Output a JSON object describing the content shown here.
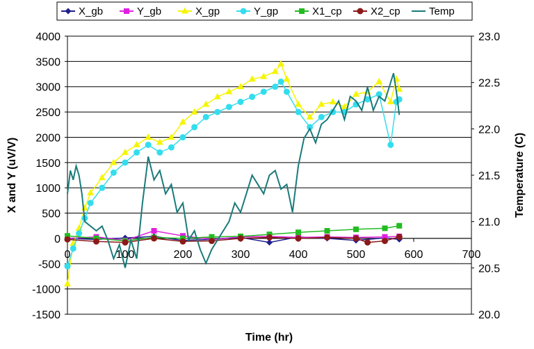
{
  "chart_data": {
    "type": "scatter",
    "xlabel": "Time (hr)",
    "ylabel": "X and Y (uV/V)",
    "y2label": "Temperature (C)",
    "xlim": [
      0,
      700
    ],
    "ylim": [
      -1500,
      4000
    ],
    "y2lim": [
      20.0,
      23.0
    ],
    "x_ticks": [
      "0",
      "100",
      "200",
      "300",
      "400",
      "500",
      "600",
      "700"
    ],
    "y_ticks": [
      "-1500",
      "-1000",
      "-500",
      "0",
      "500",
      "1000",
      "1500",
      "2000",
      "2500",
      "3000",
      "3500",
      "4000"
    ],
    "y2_ticks": [
      "20.0",
      "20.5",
      "21.0",
      "21.5",
      "22.0",
      "22.5",
      "23.0"
    ],
    "grid": "horizontal",
    "legend": "top",
    "series": [
      {
        "name": "X_gb",
        "color": "#1f1f8f",
        "marker": "diamond",
        "axis": "left",
        "x": [
          0,
          50,
          100,
          150,
          200,
          250,
          300,
          350,
          400,
          450,
          500,
          550,
          575
        ],
        "y": [
          0,
          -20,
          10,
          40,
          -40,
          -20,
          20,
          -80,
          30,
          0,
          -40,
          10,
          -20
        ]
      },
      {
        "name": "Y_gb",
        "color": "#e020e0",
        "marker": "square",
        "axis": "left",
        "x": [
          0,
          50,
          100,
          150,
          200,
          250,
          300,
          350,
          400,
          450,
          500,
          550,
          575
        ],
        "y": [
          0,
          30,
          -40,
          150,
          50,
          -20,
          30,
          40,
          20,
          30,
          20,
          30,
          40
        ]
      },
      {
        "name": "X_gp",
        "color": "#f5f500",
        "marker": "triangle",
        "axis": "left",
        "x": [
          0,
          10,
          20,
          30,
          40,
          60,
          80,
          100,
          120,
          140,
          160,
          180,
          200,
          220,
          240,
          260,
          280,
          300,
          320,
          340,
          360,
          370,
          380,
          400,
          420,
          440,
          460,
          480,
          500,
          520,
          540,
          560,
          570,
          575
        ],
        "y": [
          -900,
          -100,
          200,
          600,
          900,
          1200,
          1500,
          1700,
          1850,
          2000,
          1900,
          2000,
          2300,
          2500,
          2650,
          2800,
          2900,
          3000,
          3150,
          3200,
          3300,
          3450,
          3150,
          2650,
          2400,
          2650,
          2700,
          2600,
          2850,
          2900,
          3100,
          2700,
          3150,
          2950
        ]
      },
      {
        "name": "Y_gp",
        "color": "#33ddee",
        "marker": "circle",
        "axis": "left",
        "x": [
          0,
          10,
          20,
          30,
          40,
          60,
          80,
          100,
          120,
          140,
          160,
          180,
          200,
          220,
          240,
          260,
          280,
          300,
          320,
          340,
          360,
          370,
          380,
          400,
          420,
          440,
          460,
          480,
          500,
          520,
          540,
          560,
          570,
          575
        ],
        "y": [
          -550,
          -200,
          100,
          400,
          700,
          1000,
          1300,
          1500,
          1700,
          1850,
          1700,
          1800,
          2000,
          2200,
          2400,
          2500,
          2600,
          2700,
          2800,
          2900,
          3000,
          3100,
          2900,
          2500,
          2200,
          2400,
          2500,
          2500,
          2650,
          2750,
          2850,
          1850,
          2700,
          2750
        ]
      },
      {
        "name": "X1_cp",
        "color": "#22bb22",
        "marker": "square",
        "axis": "left",
        "x": [
          0,
          50,
          100,
          150,
          200,
          250,
          300,
          350,
          400,
          450,
          500,
          550,
          575
        ],
        "y": [
          50,
          0,
          -50,
          20,
          0,
          30,
          40,
          80,
          120,
          150,
          180,
          200,
          250
        ]
      },
      {
        "name": "X2_cp",
        "color": "#8b1a1a",
        "marker": "circle",
        "axis": "left",
        "x": [
          0,
          50,
          100,
          150,
          200,
          250,
          300,
          350,
          400,
          450,
          500,
          520,
          550,
          575
        ],
        "y": [
          -20,
          -60,
          -80,
          0,
          -60,
          -50,
          0,
          20,
          0,
          20,
          0,
          -80,
          -50,
          30
        ]
      },
      {
        "name": "Temp",
        "color": "#1a7a7a",
        "marker": "none",
        "axis": "right",
        "x": [
          0,
          5,
          10,
          15,
          20,
          25,
          30,
          40,
          50,
          60,
          70,
          80,
          90,
          100,
          110,
          120,
          130,
          140,
          150,
          160,
          170,
          180,
          190,
          200,
          210,
          220,
          230,
          240,
          250,
          260,
          270,
          280,
          290,
          300,
          310,
          320,
          330,
          340,
          350,
          360,
          370,
          380,
          390,
          400,
          410,
          420,
          430,
          440,
          450,
          460,
          470,
          480,
          490,
          500,
          510,
          520,
          530,
          540,
          550,
          560,
          565,
          570,
          575
        ],
        "y": [
          21.3,
          21.55,
          21.45,
          21.6,
          21.5,
          21.3,
          21.0,
          20.95,
          20.9,
          20.95,
          20.8,
          20.6,
          20.75,
          20.5,
          20.8,
          20.6,
          21.2,
          21.7,
          21.45,
          21.55,
          21.3,
          21.4,
          21.1,
          21.2,
          20.8,
          20.9,
          20.7,
          20.55,
          20.7,
          20.8,
          20.9,
          21.0,
          21.2,
          21.1,
          21.3,
          21.5,
          21.4,
          21.3,
          21.5,
          21.55,
          21.35,
          21.4,
          21.1,
          21.6,
          21.9,
          22.0,
          21.85,
          22.05,
          22.1,
          22.2,
          22.3,
          22.1,
          22.35,
          22.3,
          22.2,
          22.45,
          22.2,
          22.35,
          22.3,
          22.5,
          22.6,
          22.4,
          22.15
        ]
      }
    ]
  }
}
